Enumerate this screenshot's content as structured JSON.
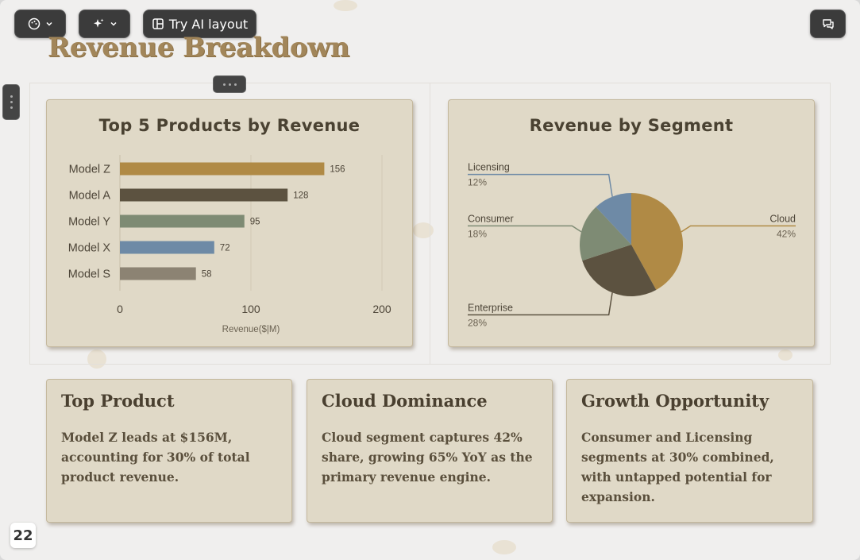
{
  "toolbar": {
    "theme_icon": "palette-icon",
    "ai_icon": "sparkle-icon",
    "layout_icon": "layout-icon",
    "try_ai_label": "Try AI layout",
    "comments_icon": "comments-icon"
  },
  "page": {
    "title": "Revenue Breakdown",
    "number": "22"
  },
  "colors": {
    "gold": "#b08a45",
    "dark": "#5c5240",
    "sage": "#7e8b74",
    "blue": "#6e8aa6",
    "taupe": "#8c8373"
  },
  "chart_data": [
    {
      "type": "bar",
      "orientation": "horizontal",
      "title": "Top 5 Products by Revenue",
      "categories": [
        "Model Z",
        "Model A",
        "Model Y",
        "Model X",
        "Model S"
      ],
      "values": [
        156,
        128,
        95,
        72,
        58
      ],
      "xlabel": "Revenue($|M)",
      "xlim": [
        0,
        200
      ],
      "xticks": [
        "0",
        "100",
        "200"
      ],
      "grid": true
    },
    {
      "type": "pie",
      "title": "Revenue by Segment",
      "labels": [
        "Cloud",
        "Enterprise",
        "Consumer",
        "Licensing"
      ],
      "values": [
        42,
        28,
        18,
        12
      ],
      "value_labels": [
        "42%",
        "28%",
        "18%",
        "12%"
      ]
    }
  ],
  "insights": [
    {
      "title": "Top Product",
      "body": "Model Z leads at $156M, accounting for 30% of total product revenue."
    },
    {
      "title": "Cloud Dominance",
      "body": "Cloud segment captures 42% share, growing 65% YoY as the primary revenue engine."
    },
    {
      "title": "Growth Opportunity",
      "body": "Consumer and Licensing segments at 30% combined, with untapped potential for expansion."
    }
  ]
}
